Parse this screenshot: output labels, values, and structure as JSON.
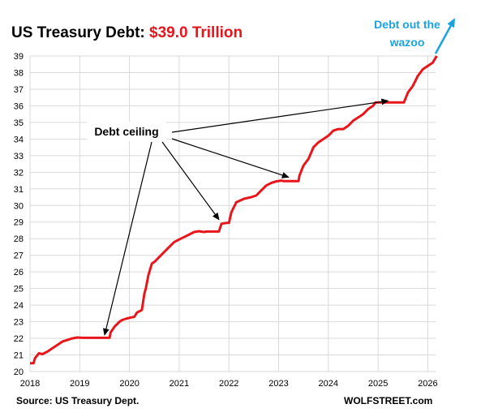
{
  "title": {
    "main": "US Treasury Debt: ",
    "highlight": "$39.0 Trillion"
  },
  "source": "Source: US Treasury Dept.",
  "brand": "WOLFSTREET.com",
  "callout": {
    "line1": "Debt out the",
    "line2": "wazoo",
    "color": "#1aa3dd"
  },
  "annotation": "Debt ceiling",
  "colors": {
    "series": "#e8151b",
    "grid": "#d9d9d9",
    "arrow": "#000000",
    "callout": "#1aa3dd"
  },
  "chart_data": {
    "type": "line",
    "title": "US Treasury Debt: $39.0 Trillion",
    "xlabel": "",
    "ylabel": "",
    "xlim": [
      2018,
      2026.2
    ],
    "ylim": [
      20,
      39
    ],
    "x_ticks": [
      2018,
      2019,
      2020,
      2021,
      2022,
      2023,
      2024,
      2025,
      2026
    ],
    "y_ticks": [
      20,
      21,
      22,
      23,
      24,
      25,
      26,
      27,
      28,
      29,
      30,
      31,
      32,
      33,
      34,
      35,
      36,
      37,
      38,
      39
    ],
    "grid": true,
    "series": [
      {
        "x": [
          2018.0,
          2018.07,
          2018.1,
          2018.18,
          2018.25,
          2018.35,
          2018.45,
          2018.55,
          2018.65,
          2018.75,
          2018.85,
          2018.95,
          2019.05,
          2019.12,
          2019.2,
          2019.3,
          2019.4,
          2019.5,
          2019.6,
          2019.62,
          2019.7,
          2019.8,
          2019.85,
          2019.95,
          2020.1,
          2020.15,
          2020.25,
          2020.3,
          2020.33,
          2020.38,
          2020.45,
          2020.5,
          2020.6,
          2020.7,
          2020.8,
          2020.9,
          2021.0,
          2021.1,
          2021.2,
          2021.3,
          2021.4,
          2021.5,
          2021.55,
          2021.6,
          2021.7,
          2021.75,
          2021.8,
          2021.85,
          2021.95,
          2022.0,
          2022.05,
          2022.15,
          2022.3,
          2022.45,
          2022.55,
          2022.65,
          2022.75,
          2022.85,
          2022.95,
          2023.05,
          2023.1,
          2023.2,
          2023.3,
          2023.4,
          2023.42,
          2023.5,
          2023.6,
          2023.7,
          2023.8,
          2023.9,
          2024.0,
          2024.1,
          2024.2,
          2024.3,
          2024.4,
          2024.5,
          2024.6,
          2024.7,
          2024.8,
          2024.9,
          2024.95,
          2025.05,
          2025.15,
          2025.25,
          2025.35,
          2025.45,
          2025.52,
          2025.6,
          2025.7,
          2025.8,
          2025.9,
          2026.0,
          2026.1,
          2026.18
        ],
        "values": [
          20.5,
          20.5,
          20.8,
          21.1,
          21.05,
          21.2,
          21.4,
          21.6,
          21.8,
          21.9,
          22.0,
          22.05,
          22.03,
          22.03,
          22.03,
          22.03,
          22.03,
          22.03,
          22.03,
          22.35,
          22.7,
          23.0,
          23.1,
          23.2,
          23.3,
          23.55,
          23.7,
          24.7,
          25.0,
          25.8,
          26.5,
          26.6,
          26.9,
          27.2,
          27.5,
          27.8,
          27.95,
          28.1,
          28.25,
          28.4,
          28.45,
          28.4,
          28.43,
          28.43,
          28.43,
          28.43,
          28.43,
          28.9,
          28.95,
          28.95,
          29.6,
          30.2,
          30.4,
          30.5,
          30.6,
          30.9,
          31.2,
          31.35,
          31.45,
          31.5,
          31.47,
          31.47,
          31.47,
          31.47,
          31.8,
          32.4,
          32.8,
          33.5,
          33.8,
          34.0,
          34.2,
          34.5,
          34.6,
          34.6,
          34.8,
          35.1,
          35.3,
          35.5,
          35.8,
          36.0,
          36.2,
          36.2,
          36.2,
          36.2,
          36.2,
          36.2,
          36.2,
          36.8,
          37.2,
          37.8,
          38.2,
          38.4,
          38.6,
          39.0
        ]
      }
    ]
  }
}
